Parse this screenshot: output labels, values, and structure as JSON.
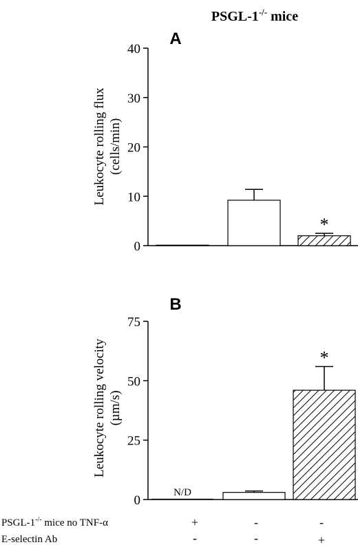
{
  "figure_title": "PSGL-1",
  "figure_title_sup": "-/-",
  "figure_title_suffix": " mice",
  "chart_data": [
    {
      "type": "bar",
      "panel_label": "A",
      "ylabel_line1": "Leukocyte rolling flux",
      "ylabel_line2": "(cells/min)",
      "ylim": [
        0,
        40
      ],
      "yticks": [
        0,
        10,
        20,
        30,
        40
      ],
      "categories": [
        "PSGL-1-/- no TNF-α",
        "PSGL-1-/- TNF-α",
        "PSGL-1-/- TNF-α + E-selectin Ab"
      ],
      "values": [
        0.1,
        9.2,
        2.0
      ],
      "errors": [
        0,
        2.2,
        0.5
      ],
      "fills": [
        "white",
        "white",
        "hatched"
      ],
      "annotations": [
        "",
        "",
        "*"
      ]
    },
    {
      "type": "bar",
      "panel_label": "B",
      "ylabel_line1": "Leukocyte rolling velocity",
      "ylabel_line2": "(µm/s)",
      "ylim": [
        0,
        75
      ],
      "yticks": [
        0,
        25,
        50,
        75
      ],
      "categories": [
        "PSGL-1-/- no TNF-α",
        "PSGL-1-/- TNF-α",
        "PSGL-1-/- TNF-α + E-selectin Ab"
      ],
      "values": [
        0,
        3.0,
        46.0
      ],
      "errors": [
        0,
        0.6,
        10.0
      ],
      "fills": [
        "white",
        "white",
        "hatched"
      ],
      "annotations": [
        "N/D",
        "",
        "*"
      ]
    }
  ],
  "condition_table": {
    "row1_label": "PSGL-1",
    "row1_sup": "-/-",
    "row1_suffix": " mice no TNF-α",
    "row1_values": [
      "+",
      "-",
      "-"
    ],
    "row2_label": "E-selectin Ab",
    "row2_values": [
      "-",
      "-",
      "+"
    ]
  }
}
